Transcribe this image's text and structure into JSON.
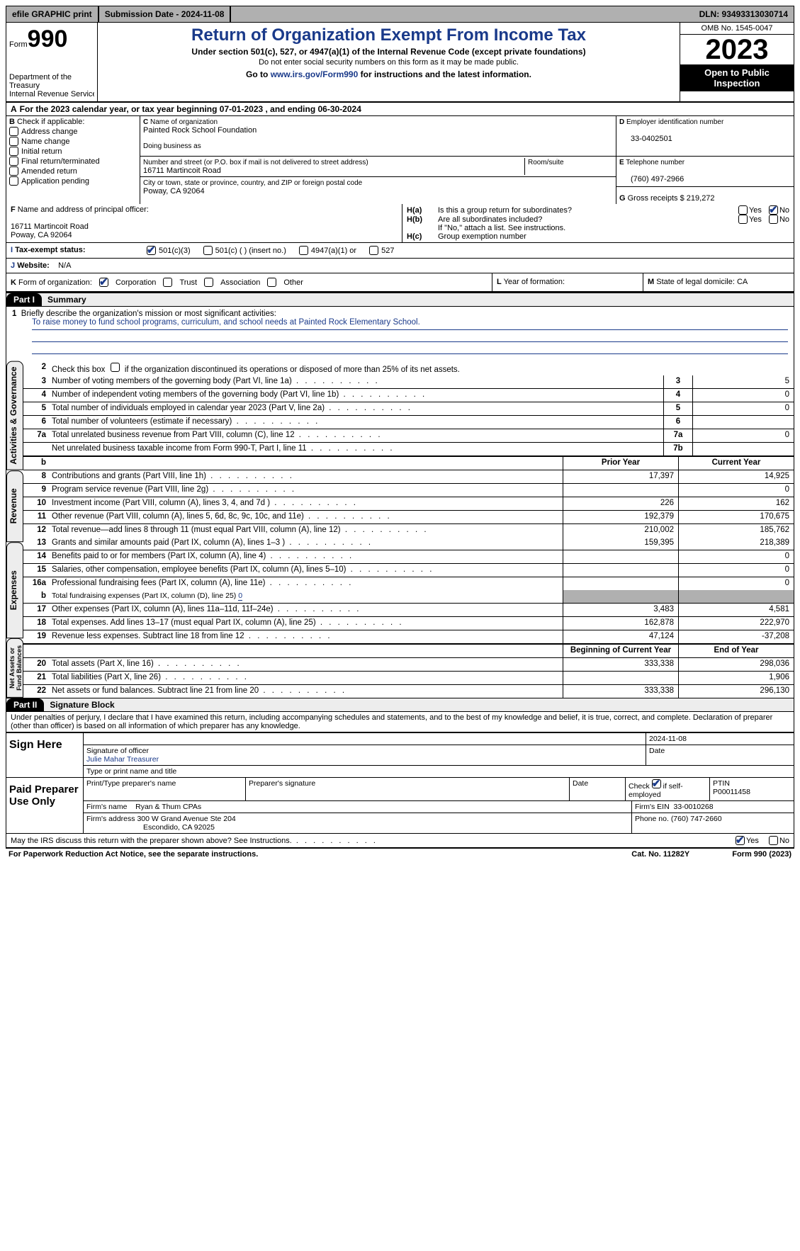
{
  "topbar": {
    "efile": "efile GRAPHIC print",
    "submission_label": "Submission Date - 2024-11-08",
    "dln_label": "DLN: 93493313030714"
  },
  "header": {
    "form_prefix": "Form",
    "form_number": "990",
    "dept": "Department of the Treasury",
    "irs": "Internal Revenue Service",
    "title": "Return of Organization Exempt From Income Tax",
    "subtitle": "Under section 501(c), 527, or 4947(a)(1) of the Internal Revenue Code (except private foundations)",
    "note1": "Do not enter social security numbers on this form as it may be made public.",
    "note2_pre": "Go to ",
    "note2_link": "www.irs.gov/Form990",
    "note2_post": " for instructions and the latest information.",
    "omb": "OMB No. 1545-0047",
    "year": "2023",
    "inspection": "Open to Public Inspection"
  },
  "periodA": "For the 2023 calendar year, or tax year beginning 07-01-2023    , and ending 06-30-2024",
  "boxB": {
    "label": "Check if applicable:",
    "items": [
      "Address change",
      "Name change",
      "Initial return",
      "Final return/terminated",
      "Amended return",
      "Application pending"
    ]
  },
  "boxC": {
    "name_lbl": "Name of organization",
    "name": "Painted Rock School Foundation",
    "dba_lbl": "Doing business as",
    "street_lbl": "Number and street (or P.O. box if mail is not delivered to street address)",
    "room_lbl": "Room/suite",
    "street": "16711 Martincoit Road",
    "city_lbl": "City or town, state or province, country, and ZIP or foreign postal code",
    "city": "Poway, CA  92064"
  },
  "boxD": {
    "lbl": "Employer identification number",
    "val": "33-0402501"
  },
  "boxE": {
    "lbl": "Telephone number",
    "val": "(760) 497-2966"
  },
  "boxG": {
    "lbl": "Gross receipts $",
    "val": "219,272"
  },
  "boxF": {
    "lbl": "Name and address of principal officer:",
    "line1": "16711 Martincoit Road",
    "line2": "Poway, CA  92064"
  },
  "boxH": {
    "a": "Is this a group return for subordinates?",
    "b": "Are all subordinates included?",
    "note": "If \"No,\" attach a list. See instructions.",
    "c": "Group exemption number",
    "yes": "Yes",
    "no": "No",
    "ha_no_checked": true
  },
  "taxstatus": {
    "lbl": "Tax-exempt status:",
    "opt1": "501(c)(3)",
    "checked1": true,
    "opt2": "501(c) (  ) (insert no.)",
    "opt3": "4947(a)(1) or",
    "opt4": "527"
  },
  "website": {
    "lbl": "Website:",
    "val": "N/A"
  },
  "boxK": {
    "lbl": "Form of organization:",
    "corp": "Corporation",
    "corp_checked": true,
    "trust": "Trust",
    "assoc": "Association",
    "other": "Other"
  },
  "boxL": "Year of formation:",
  "boxM": {
    "lbl": "State of legal domicile:",
    "val": "CA"
  },
  "part1": {
    "tag": "Part I",
    "title": "Summary"
  },
  "part2": {
    "tag": "Part II",
    "title": "Signature Block"
  },
  "tabs": {
    "gov": "Activities & Governance",
    "rev": "Revenue",
    "exp": "Expenses",
    "net": "Net Assets or Fund Balances"
  },
  "summary": {
    "line1_lbl": "Briefly describe the organization's mission or most significant activities:",
    "mission": "To raise money to fund school programs, curriculum, and school needs at Painted Rock Elementary School.",
    "line2": "Check this box        if the organization discontinued its operations or disposed of more than 25% of its net assets.",
    "lines_simple": [
      {
        "n": "3",
        "d": "Number of voting members of the governing body (Part VI, line 1a)",
        "r": "3",
        "v": "5"
      },
      {
        "n": "4",
        "d": "Number of independent voting members of the governing body (Part VI, line 1b)",
        "r": "4",
        "v": "0"
      },
      {
        "n": "5",
        "d": "Total number of individuals employed in calendar year 2023 (Part V, line 2a)",
        "r": "5",
        "v": "0"
      },
      {
        "n": "6",
        "d": "Total number of volunteers (estimate if necessary)",
        "r": "6",
        "v": ""
      },
      {
        "n": "7a",
        "d": "Total unrelated business revenue from Part VIII, column (C), line 12",
        "r": "7a",
        "v": "0"
      },
      {
        "n": "",
        "d": "Net unrelated business taxable income from Form 990-T, Part I, line 11",
        "r": "7b",
        "v": ""
      }
    ],
    "col_prior": "Prior Year",
    "col_current": "Current Year",
    "rev": [
      {
        "n": "8",
        "d": "Contributions and grants (Part VIII, line 1h)",
        "p": "17,397",
        "c": "14,925"
      },
      {
        "n": "9",
        "d": "Program service revenue (Part VIII, line 2g)",
        "p": "",
        "c": "0"
      },
      {
        "n": "10",
        "d": "Investment income (Part VIII, column (A), lines 3, 4, and 7d )",
        "p": "226",
        "c": "162"
      },
      {
        "n": "11",
        "d": "Other revenue (Part VIII, column (A), lines 5, 6d, 8c, 9c, 10c, and 11e)",
        "p": "192,379",
        "c": "170,675"
      },
      {
        "n": "12",
        "d": "Total revenue—add lines 8 through 11 (must equal Part VIII, column (A), line 12)",
        "p": "210,002",
        "c": "185,762"
      }
    ],
    "exp": [
      {
        "n": "13",
        "d": "Grants and similar amounts paid (Part IX, column (A), lines 1–3 )",
        "p": "159,395",
        "c": "218,389"
      },
      {
        "n": "14",
        "d": "Benefits paid to or for members (Part IX, column (A), line 4)",
        "p": "",
        "c": "0"
      },
      {
        "n": "15",
        "d": "Salaries, other compensation, employee benefits (Part IX, column (A), lines 5–10)",
        "p": "",
        "c": "0"
      },
      {
        "n": "16a",
        "d": "Professional fundraising fees (Part IX, column (A), line 11e)",
        "p": "",
        "c": "0"
      }
    ],
    "exp_b": {
      "n": "b",
      "d": "Total fundraising expenses (Part IX, column (D), line 25)",
      "v": "0"
    },
    "exp2": [
      {
        "n": "17",
        "d": "Other expenses (Part IX, column (A), lines 11a–11d, 11f–24e)",
        "p": "3,483",
        "c": "4,581"
      },
      {
        "n": "18",
        "d": "Total expenses. Add lines 13–17 (must equal Part IX, column (A), line 25)",
        "p": "162,878",
        "c": "222,970"
      },
      {
        "n": "19",
        "d": "Revenue less expenses. Subtract line 18 from line 12",
        "p": "47,124",
        "c": "-37,208"
      }
    ],
    "col_begin": "Beginning of Current Year",
    "col_end": "End of Year",
    "net": [
      {
        "n": "20",
        "d": "Total assets (Part X, line 16)",
        "p": "333,338",
        "c": "298,036"
      },
      {
        "n": "21",
        "d": "Total liabilities (Part X, line 26)",
        "p": "",
        "c": "1,906"
      },
      {
        "n": "22",
        "d": "Net assets or fund balances. Subtract line 21 from line 20",
        "p": "333,338",
        "c": "296,130"
      }
    ]
  },
  "sig": {
    "declaration": "Under penalties of perjury, I declare that I have examined this return, including accompanying schedules and statements, and to the best of my knowledge and belief, it is true, correct, and complete. Declaration of preparer (other than officer) is based on all information of which preparer has any knowledge.",
    "sign_here": "Sign Here",
    "sig_officer": "Signature of officer",
    "officer": "Julie Mahar  Treasurer",
    "type_name": "Type or print name and title",
    "date_lbl": "Date",
    "date": "2024-11-08",
    "paid": "Paid Preparer Use Only",
    "p1": "Print/Type preparer's name",
    "p2": "Preparer's signature",
    "p3": "Date",
    "p4_pre": "Check",
    "p4_post": "if self-employed",
    "p4_checked": true,
    "p5": "PTIN",
    "ptin": "P00011458",
    "firm_name_lbl": "Firm's name",
    "firm_name": "Ryan & Thum CPAs",
    "firm_ein_lbl": "Firm's EIN",
    "firm_ein": "33-0010268",
    "firm_addr_lbl": "Firm's address",
    "firm_addr1": "300 W Grand Avenue Ste 204",
    "firm_addr2": "Escondido, CA  92025",
    "phone_lbl": "Phone no.",
    "phone": "(760) 747-2660",
    "discuss": "May the IRS discuss this return with the preparer shown above? See Instructions.",
    "discuss_yes_checked": true
  },
  "footer": {
    "pra": "For Paperwork Reduction Act Notice, see the separate instructions.",
    "cat": "Cat. No. 11282Y",
    "form": "Form 990 (2023)"
  }
}
